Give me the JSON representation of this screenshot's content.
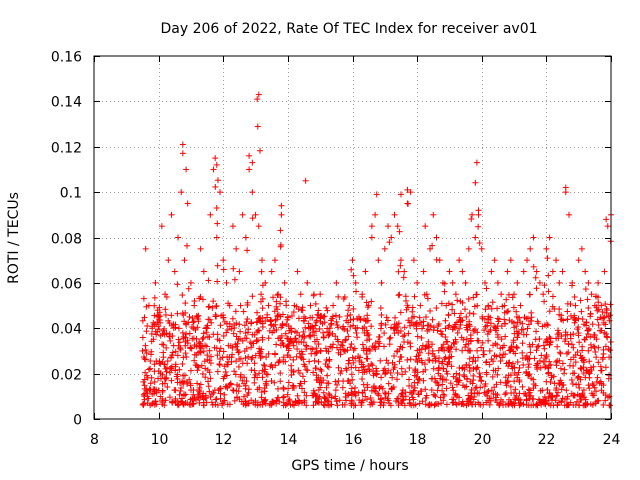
{
  "chart_data": {
    "type": "scatter",
    "title": "Day 206 of 2022, Rate Of TEC Index for receiver av01",
    "xlabel": "GPS time / hours",
    "ylabel": "ROTI / TECUs",
    "xlim": [
      8,
      24
    ],
    "ylim": [
      0,
      0.16
    ],
    "xticks": [
      8,
      10,
      12,
      14,
      16,
      18,
      20,
      22,
      24
    ],
    "xtick_labels": [
      "8",
      "10",
      "12",
      "14",
      "16",
      "18",
      "20",
      "22",
      "24"
    ],
    "yticks": [
      0,
      0.02,
      0.04,
      0.06,
      0.08,
      0.1,
      0.12,
      0.14,
      0.16
    ],
    "ytick_labels": [
      "0",
      "0.02",
      "0.04",
      "0.06",
      "0.08",
      "0.1",
      "0.12",
      "0.14",
      "0.16"
    ],
    "grid": true,
    "marker": "+",
    "color": "#ff0000",
    "series": [
      {
        "name": "ROTI",
        "x": [
          9.5,
          9.6,
          9.7,
          9.8,
          9.9,
          10.0,
          10.1,
          10.2,
          10.3,
          10.4,
          10.5,
          10.6,
          10.7,
          10.8,
          10.9,
          11.0,
          11.1,
          11.2,
          11.3,
          11.4,
          11.5,
          11.6,
          11.7,
          11.8,
          11.9,
          12.0,
          12.1,
          12.2,
          12.3,
          12.4,
          12.5,
          12.6,
          12.7,
          12.8,
          12.9,
          13.0,
          13.1,
          13.2,
          13.3,
          13.4,
          13.5,
          13.6,
          13.7,
          13.8,
          13.9,
          14.0,
          14.1,
          14.2,
          14.3,
          14.4,
          14.5,
          14.6,
          14.7,
          14.8,
          14.9,
          15.0,
          15.1,
          15.2,
          15.3,
          15.4,
          15.5,
          15.6,
          15.7,
          15.8,
          15.9,
          16.0,
          16.1,
          16.2,
          16.3,
          16.4,
          16.5,
          16.6,
          16.7,
          16.8,
          16.9,
          17.0,
          17.1,
          17.2,
          17.3,
          17.4,
          17.5,
          17.6,
          17.7,
          17.8,
          17.9,
          18.0,
          18.1,
          18.2,
          18.3,
          18.4,
          18.5,
          18.6,
          18.7,
          18.8,
          18.9,
          19.0,
          19.1,
          19.2,
          19.3,
          19.4,
          19.5,
          19.6,
          19.7,
          19.8,
          19.9,
          20.0,
          20.1,
          20.2,
          20.3,
          20.4,
          20.5,
          20.6,
          20.7,
          20.8,
          20.9,
          21.0,
          21.1,
          21.2,
          21.3,
          21.4,
          21.5,
          21.6,
          21.7,
          21.8,
          21.9,
          22.0,
          22.1,
          22.2,
          22.3,
          22.4,
          22.5,
          22.6,
          22.7,
          22.8,
          22.9,
          23.0,
          23.1,
          23.2,
          23.3,
          23.4,
          23.5,
          23.6,
          23.7,
          23.8,
          23.9,
          24.0,
          10.75,
          11.75,
          12.8,
          13.1,
          13.05,
          14.55,
          16.75,
          17.7,
          19.85,
          22.6,
          23.85,
          10.85,
          11.8,
          12.9,
          13.8,
          17.5,
          19.9,
          16.6,
          18.25
        ],
        "y": [
          0.03,
          0.075,
          0.05,
          0.04,
          0.06,
          0.045,
          0.085,
          0.055,
          0.07,
          0.09,
          0.065,
          0.08,
          0.1,
          0.07,
          0.095,
          0.06,
          0.05,
          0.045,
          0.075,
          0.065,
          0.04,
          0.09,
          0.11,
          0.08,
          0.1,
          0.07,
          0.06,
          0.05,
          0.085,
          0.075,
          0.065,
          0.09,
          0.08,
          0.11,
          0.1,
          0.09,
          0.085,
          0.07,
          0.06,
          0.05,
          0.065,
          0.07,
          0.055,
          0.09,
          0.06,
          0.045,
          0.04,
          0.05,
          0.065,
          0.055,
          0.045,
          0.06,
          0.05,
          0.04,
          0.035,
          0.055,
          0.045,
          0.03,
          0.04,
          0.05,
          0.06,
          0.045,
          0.04,
          0.035,
          0.05,
          0.07,
          0.06,
          0.045,
          0.055,
          0.065,
          0.05,
          0.08,
          0.09,
          0.07,
          0.06,
          0.075,
          0.085,
          0.08,
          0.09,
          0.085,
          0.07,
          0.065,
          0.095,
          0.1,
          0.07,
          0.06,
          0.05,
          0.065,
          0.055,
          0.075,
          0.09,
          0.08,
          0.07,
          0.06,
          0.05,
          0.065,
          0.06,
          0.055,
          0.07,
          0.065,
          0.06,
          0.075,
          0.09,
          0.08,
          0.09,
          0.075,
          0.06,
          0.05,
          0.065,
          0.07,
          0.06,
          0.055,
          0.05,
          0.065,
          0.07,
          0.055,
          0.06,
          0.05,
          0.065,
          0.07,
          0.075,
          0.08,
          0.065,
          0.06,
          0.055,
          0.075,
          0.08,
          0.065,
          0.07,
          0.06,
          0.065,
          0.1,
          0.09,
          0.06,
          0.05,
          0.07,
          0.075,
          0.065,
          0.06,
          0.055,
          0.05,
          0.06,
          0.05,
          0.065,
          0.085,
          0.09,
          0.121,
          0.115,
          0.116,
          0.143,
          0.141,
          0.105,
          0.099,
          0.101,
          0.113,
          0.102,
          0.088,
          0.11,
          0.112,
          0.113,
          0.094,
          0.099,
          0.092,
          0.085,
          0.085
        ],
        "note": "Dense red '+' markers spanning roughly 9.5-24 h; most values 0.005-0.06 TECUs with spikes up to ~0.143 near 13 h"
      }
    ]
  }
}
